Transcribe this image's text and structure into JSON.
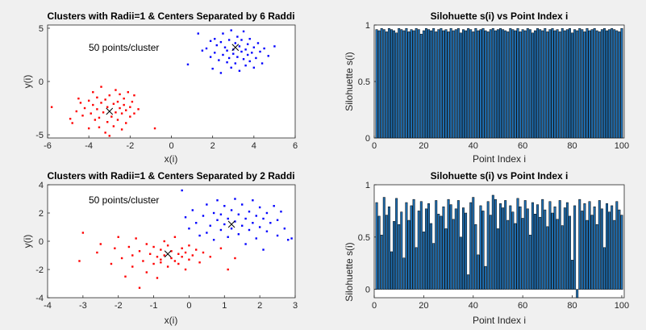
{
  "figure": {
    "background": "#f0f0f0",
    "axes_background": "#ffffff"
  },
  "chart_data": [
    {
      "type": "scatter",
      "title": "Clusters with Radii=1 & Centers Separated by 6 Raddi",
      "xlabel": "x(i)",
      "ylabel": "y(i)",
      "xlim": [
        -6,
        6
      ],
      "ylim": [
        -5.3,
        5.3
      ],
      "xticks": [
        "-6",
        "-4",
        "-2",
        "0",
        "2",
        "4",
        "6"
      ],
      "yticks": [
        "-5",
        "0",
        "5"
      ],
      "annotation": "50 points/cluster",
      "grid": false,
      "series": [
        {
          "color": "#ff0000",
          "points": [
            [
              -5.8,
              -2.4
            ],
            [
              -4.8,
              -3.9
            ],
            [
              -4.6,
              -2.8
            ],
            [
              -4.5,
              -1.6
            ],
            [
              -4.4,
              -2.0
            ],
            [
              -4.3,
              -3.2
            ],
            [
              -4.2,
              -2.5
            ],
            [
              -4.0,
              -1.8
            ],
            [
              -4.0,
              -4.4
            ],
            [
              -3.9,
              -3.0
            ],
            [
              -3.8,
              -1.0
            ],
            [
              -3.8,
              -2.2
            ],
            [
              -3.7,
              -3.6
            ],
            [
              -3.6,
              -2.6
            ],
            [
              -3.6,
              -1.5
            ],
            [
              -3.5,
              -4.3
            ],
            [
              -3.5,
              -3.4
            ],
            [
              -3.4,
              -2.0
            ],
            [
              -3.4,
              -0.5
            ],
            [
              -3.3,
              -2.9
            ],
            [
              -3.2,
              -1.7
            ],
            [
              -3.2,
              -4.8
            ],
            [
              -3.1,
              -2.4
            ],
            [
              -3.1,
              -3.8
            ],
            [
              -3.0,
              -5.1
            ],
            [
              -3.0,
              -1.3
            ],
            [
              -2.9,
              -3.3
            ],
            [
              -2.8,
              -2.1
            ],
            [
              -2.8,
              -4.2
            ],
            [
              -2.7,
              -0.8
            ],
            [
              -2.7,
              -2.9
            ],
            [
              -2.6,
              -1.9
            ],
            [
              -2.6,
              -3.6
            ],
            [
              -2.5,
              -2.5
            ],
            [
              -2.5,
              -1.2
            ],
            [
              -2.4,
              -4.5
            ],
            [
              -2.4,
              -3.0
            ],
            [
              -2.3,
              -2.2
            ],
            [
              -2.3,
              -1.6
            ],
            [
              -2.2,
              -3.9
            ],
            [
              -2.2,
              -2.7
            ],
            [
              -2.1,
              -1.0
            ],
            [
              -2.0,
              -2.4
            ],
            [
              -2.0,
              -3.3
            ],
            [
              -1.9,
              -1.9
            ],
            [
              -1.8,
              -1.3
            ],
            [
              -1.8,
              -3.0
            ],
            [
              -1.6,
              -2.6
            ],
            [
              -0.8,
              -4.4
            ],
            [
              -4.9,
              -3.5
            ]
          ]
        },
        {
          "color": "#0000ff",
          "points": [
            [
              0.8,
              1.6
            ],
            [
              1.3,
              4.5
            ],
            [
              1.5,
              2.9
            ],
            [
              1.7,
              3.1
            ],
            [
              1.9,
              2.3
            ],
            [
              1.9,
              3.8
            ],
            [
              2.0,
              1.2
            ],
            [
              2.1,
              2.7
            ],
            [
              2.1,
              4.0
            ],
            [
              2.2,
              3.4
            ],
            [
              2.3,
              2.0
            ],
            [
              2.4,
              3.7
            ],
            [
              2.4,
              0.8
            ],
            [
              2.5,
              2.5
            ],
            [
              2.5,
              4.5
            ],
            [
              2.6,
              3.2
            ],
            [
              2.7,
              1.8
            ],
            [
              2.7,
              2.9
            ],
            [
              2.8,
              3.9
            ],
            [
              2.8,
              2.2
            ],
            [
              2.9,
              1.3
            ],
            [
              2.9,
              4.8
            ],
            [
              3.0,
              3.0
            ],
            [
              3.0,
              2.6
            ],
            [
              3.1,
              3.6
            ],
            [
              3.1,
              1.7
            ],
            [
              3.2,
              2.3
            ],
            [
              3.2,
              4.2
            ],
            [
              3.3,
              3.3
            ],
            [
              3.3,
              1.0
            ],
            [
              3.4,
              2.8
            ],
            [
              3.4,
              3.9
            ],
            [
              3.5,
              2.1
            ],
            [
              3.5,
              4.7
            ],
            [
              3.6,
              3.0
            ],
            [
              3.6,
              1.5
            ],
            [
              3.7,
              2.5
            ],
            [
              3.7,
              3.5
            ],
            [
              3.8,
              1.9
            ],
            [
              3.8,
              4.0
            ],
            [
              3.9,
              2.7
            ],
            [
              4.0,
              3.2
            ],
            [
              4.0,
              1.3
            ],
            [
              4.1,
              2.2
            ],
            [
              4.2,
              3.6
            ],
            [
              4.3,
              2.8
            ],
            [
              4.4,
              1.7
            ],
            [
              4.5,
              3.1
            ],
            [
              4.7,
              2.4
            ],
            [
              5.0,
              3.3
            ]
          ]
        }
      ],
      "centers": [
        [
          -3.0,
          -2.8
        ],
        [
          3.1,
          3.2
        ]
      ]
    },
    {
      "type": "bar",
      "title": "Silohuette s(i) vs Point Index i",
      "xlabel": "Point Index i",
      "ylabel": "Silohuette s(i)",
      "xlim": [
        0,
        101
      ],
      "ylim": [
        0,
        1
      ],
      "xticks": [
        "0",
        "20",
        "40",
        "60",
        "80",
        "100"
      ],
      "yticks": [
        "0",
        "0.5",
        "1"
      ],
      "bar_color": "#1f6fb2",
      "values": [
        0.96,
        0.95,
        0.97,
        0.96,
        0.94,
        0.97,
        0.96,
        0.95,
        0.93,
        0.97,
        0.96,
        0.95,
        0.97,
        0.94,
        0.96,
        0.95,
        0.97,
        0.96,
        0.92,
        0.95,
        0.97,
        0.96,
        0.95,
        0.97,
        0.94,
        0.96,
        0.97,
        0.95,
        0.96,
        0.94,
        0.97,
        0.95,
        0.96,
        0.97,
        0.93,
        0.96,
        0.95,
        0.97,
        0.96,
        0.94,
        0.97,
        0.95,
        0.96,
        0.97,
        0.95,
        0.94,
        0.96,
        0.97,
        0.95,
        0.96,
        0.97,
        0.96,
        0.95,
        0.94,
        0.97,
        0.96,
        0.95,
        0.97,
        0.94,
        0.96,
        0.95,
        0.97,
        0.96,
        0.93,
        0.95,
        0.97,
        0.96,
        0.95,
        0.97,
        0.94,
        0.96,
        0.97,
        0.95,
        0.96,
        0.94,
        0.97,
        0.95,
        0.96,
        0.97,
        0.93,
        0.96,
        0.95,
        0.97,
        0.96,
        0.94,
        0.97,
        0.95,
        0.96,
        0.97,
        0.95,
        0.94,
        0.96,
        0.97,
        0.95,
        0.96,
        0.97,
        0.96,
        0.95,
        0.94,
        0.97
      ]
    },
    {
      "type": "scatter",
      "title": "Clusters with Radii=1 & Centers Separated by 2 Raddi",
      "xlabel": "x(i)",
      "ylabel": "y(i)",
      "xlim": [
        -4,
        3
      ],
      "ylim": [
        -4,
        4
      ],
      "xticks": [
        "-4",
        "-3",
        "-2",
        "-1",
        "0",
        "1",
        "2",
        "3"
      ],
      "yticks": [
        "-4",
        "-2",
        "0",
        "2",
        "4"
      ],
      "annotation": "50 points/cluster",
      "grid": false,
      "series": [
        {
          "color": "#ff0000",
          "points": [
            [
              -3.1,
              -1.4
            ],
            [
              -3.0,
              0.6
            ],
            [
              -2.6,
              -0.8
            ],
            [
              -2.5,
              -0.2
            ],
            [
              -2.2,
              -1.6
            ],
            [
              -2.1,
              -0.5
            ],
            [
              -2.0,
              0.3
            ],
            [
              -1.9,
              -1.2
            ],
            [
              -1.8,
              -2.5
            ],
            [
              -1.7,
              -0.4
            ],
            [
              -1.6,
              -1.8
            ],
            [
              -1.6,
              -1.0
            ],
            [
              -1.5,
              0.2
            ],
            [
              -1.4,
              -3.3
            ],
            [
              -1.4,
              -0.7
            ],
            [
              -1.3,
              -1.4
            ],
            [
              -1.2,
              -0.2
            ],
            [
              -1.2,
              -2.2
            ],
            [
              -1.1,
              -0.9
            ],
            [
              -1.0,
              -1.6
            ],
            [
              -1.0,
              -0.4
            ],
            [
              -0.9,
              -1.1
            ],
            [
              -0.9,
              -2.6
            ],
            [
              -0.8,
              -0.6
            ],
            [
              -0.8,
              -1.5
            ],
            [
              -0.7,
              0.0
            ],
            [
              -0.7,
              -1.0
            ],
            [
              -0.6,
              -1.8
            ],
            [
              -0.6,
              -0.3
            ],
            [
              -0.5,
              -1.2
            ],
            [
              -0.5,
              -0.7
            ],
            [
              -0.4,
              -1.4
            ],
            [
              -0.4,
              0.3
            ],
            [
              -0.3,
              -0.9
            ],
            [
              -0.3,
              -1.6
            ],
            [
              -0.2,
              -0.5
            ],
            [
              -0.2,
              -1.1
            ],
            [
              -0.1,
              -2.0
            ],
            [
              -0.1,
              -0.8
            ],
            [
              0.0,
              -1.3
            ],
            [
              0.0,
              -0.3
            ],
            [
              0.1,
              -1.0
            ],
            [
              0.2,
              -0.6
            ],
            [
              0.3,
              -1.5
            ],
            [
              0.4,
              -0.8
            ],
            [
              0.6,
              -1.1
            ],
            [
              0.9,
              -0.5
            ],
            [
              1.1,
              -2.0
            ],
            [
              1.3,
              -1.2
            ],
            [
              -0.8,
              -1.3
            ]
          ]
        },
        {
          "color": "#0000ff",
          "points": [
            [
              -0.2,
              3.6
            ],
            [
              -0.1,
              1.7
            ],
            [
              0.0,
              0.9
            ],
            [
              0.1,
              2.2
            ],
            [
              0.2,
              1.3
            ],
            [
              0.3,
              0.4
            ],
            [
              0.4,
              1.8
            ],
            [
              0.5,
              2.6
            ],
            [
              0.5,
              0.6
            ],
            [
              0.6,
              1.1
            ],
            [
              0.7,
              2.0
            ],
            [
              0.7,
              0.1
            ],
            [
              0.8,
              1.5
            ],
            [
              0.8,
              2.9
            ],
            [
              0.9,
              0.8
            ],
            [
              0.9,
              1.9
            ],
            [
              1.0,
              1.2
            ],
            [
              1.0,
              2.5
            ],
            [
              1.1,
              0.3
            ],
            [
              1.1,
              1.6
            ],
            [
              1.2,
              2.2
            ],
            [
              1.2,
              0.9
            ],
            [
              1.3,
              1.4
            ],
            [
              1.3,
              3.0
            ],
            [
              1.4,
              1.9
            ],
            [
              1.4,
              0.5
            ],
            [
              1.5,
              1.1
            ],
            [
              1.5,
              2.6
            ],
            [
              1.6,
              1.6
            ],
            [
              1.6,
              -0.2
            ],
            [
              1.7,
              2.1
            ],
            [
              1.7,
              0.8
            ],
            [
              1.8,
              1.3
            ],
            [
              1.8,
              2.9
            ],
            [
              1.9,
              1.8
            ],
            [
              1.9,
              0.2
            ],
            [
              2.0,
              2.4
            ],
            [
              2.0,
              1.0
            ],
            [
              2.1,
              1.6
            ],
            [
              2.1,
              -0.6
            ],
            [
              2.2,
              2.0
            ],
            [
              2.2,
              0.7
            ],
            [
              2.3,
              1.3
            ],
            [
              2.4,
              2.5
            ],
            [
              2.5,
              0.4
            ],
            [
              2.5,
              1.5
            ],
            [
              2.6,
              2.1
            ],
            [
              2.7,
              0.9
            ],
            [
              2.8,
              0.1
            ],
            [
              2.9,
              0.2
            ]
          ]
        }
      ],
      "centers": [
        [
          -0.6,
          -0.9
        ],
        [
          1.2,
          1.2
        ]
      ]
    },
    {
      "type": "bar",
      "title": "Silohuette s(i) vs Point Index i",
      "xlabel": "Point Index i",
      "ylabel": "Silohuette s(i)",
      "xlim": [
        0,
        101
      ],
      "ylim": [
        -0.08,
        1
      ],
      "xticks": [
        "0",
        "20",
        "40",
        "60",
        "80",
        "100"
      ],
      "yticks": [
        "0",
        "0.5",
        "1"
      ],
      "bar_color": "#1f6fb2",
      "values": [
        0.83,
        0.7,
        0.52,
        0.88,
        0.71,
        0.79,
        0.36,
        0.65,
        0.87,
        0.62,
        0.74,
        0.3,
        0.83,
        0.66,
        0.8,
        0.86,
        0.4,
        0.75,
        0.84,
        0.55,
        0.77,
        0.82,
        0.63,
        0.44,
        0.85,
        0.72,
        0.7,
        0.79,
        0.58,
        0.86,
        0.81,
        0.67,
        0.77,
        0.85,
        0.5,
        0.78,
        0.73,
        0.14,
        0.83,
        0.88,
        0.62,
        0.33,
        0.8,
        0.75,
        0.22,
        0.84,
        0.71,
        0.9,
        0.86,
        0.58,
        0.82,
        0.78,
        0.85,
        0.66,
        0.8,
        0.74,
        0.63,
        0.87,
        0.79,
        0.68,
        0.85,
        0.77,
        0.52,
        0.83,
        0.72,
        0.81,
        0.69,
        0.86,
        0.76,
        0.6,
        0.84,
        0.73,
        0.79,
        0.67,
        0.85,
        0.61,
        0.78,
        0.83,
        0.7,
        0.28,
        0.8,
        -0.08,
        0.86,
        0.75,
        0.82,
        0.66,
        0.84,
        0.71,
        0.79,
        0.62,
        0.85,
        0.77,
        0.4,
        0.82,
        0.74,
        0.8,
        0.66,
        0.84,
        0.76,
        0.71
      ]
    }
  ]
}
